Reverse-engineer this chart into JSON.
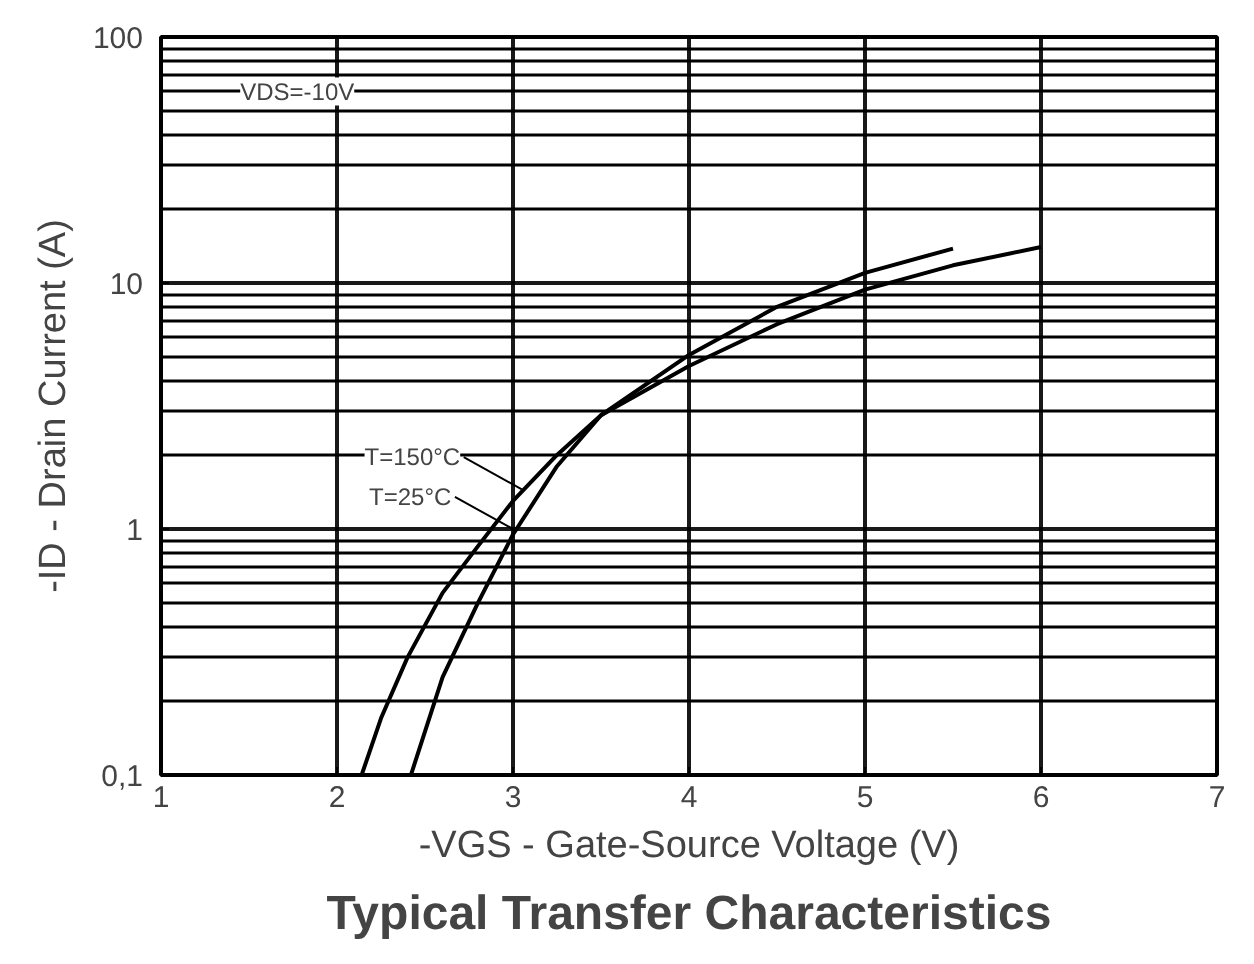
{
  "chart_data": {
    "type": "line",
    "title": "Typical Transfer Characteristics",
    "xlabel": "-VGS - Gate-Source Voltage (V)",
    "ylabel": "-ID - Drain Current (A)",
    "log": "y",
    "grid": true,
    "marker": "none",
    "line_style": "solid",
    "xlim": [
      1,
      7
    ],
    "xticks": [
      1,
      2,
      3,
      4,
      5,
      6,
      7
    ],
    "ylim": [
      0.1,
      100
    ],
    "yticks": [
      {
        "value": 0.1,
        "label": "0,1"
      },
      1,
      10,
      100
    ],
    "series": [
      {
        "color": "#000000",
        "x": [
          2.14,
          2.25,
          2.4,
          2.6,
          2.8,
          3,
          3.25,
          3.5,
          4,
          4.5,
          5,
          5.5,
          6
        ],
        "values": [
          0.1,
          0.17,
          0.3,
          0.55,
          0.85,
          1.3,
          2,
          2.9,
          4.6,
          6.8,
          9.4,
          11.8,
          14
        ]
      },
      {
        "color": "#000000",
        "x": [
          2.42,
          2.6,
          2.8,
          3,
          3.25,
          3.5,
          4,
          4.5,
          5,
          5.5
        ],
        "values": [
          0.1,
          0.25,
          0.5,
          0.95,
          1.8,
          2.9,
          5.1,
          8,
          11,
          13.8
        ]
      }
    ],
    "annotations": [
      "VDS=-10V",
      {
        "text": "T=150°C",
        "x": 3.05,
        "y": 1.45
      },
      {
        "text": "T=25°C",
        "x": 3.0,
        "y": 1.0
      }
    ]
  }
}
